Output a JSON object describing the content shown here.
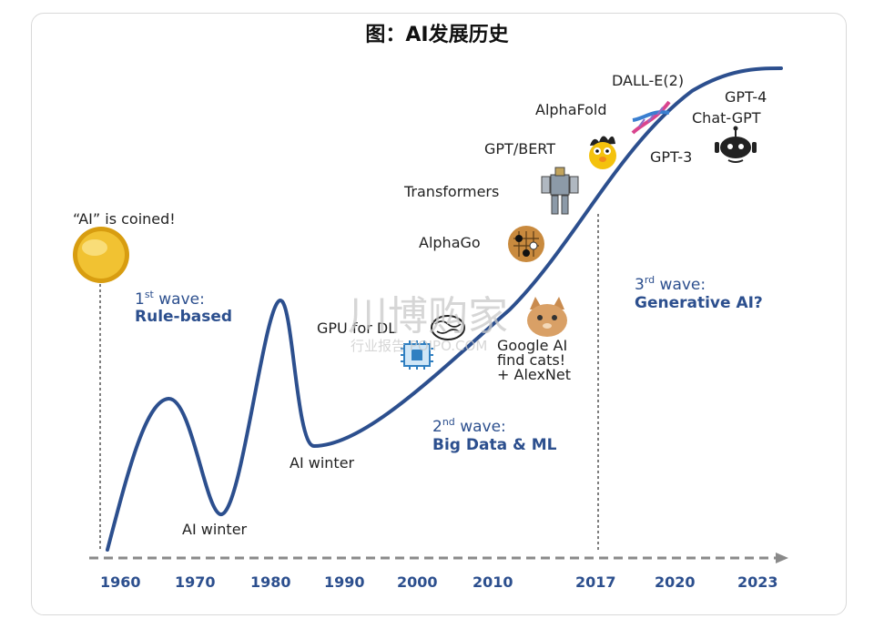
{
  "title": "图：AI发展历史",
  "axis_years": [
    "1960",
    "1970",
    "1980",
    "1990",
    "2000",
    "2010",
    "2017",
    "2020",
    "2023"
  ],
  "labels": {
    "ai_coined": "“AI” is coined!",
    "wave1_sup": "st",
    "wave1_pre": "1",
    "wave1_word": " wave:",
    "wave1_name": "Rule-based",
    "ai_winter_1": "AI winter",
    "ai_winter_2": "AI winter",
    "gpu": "GPU for DL",
    "google_1": "Google AI",
    "google_2": "find cats!",
    "google_3": "+ AlexNet",
    "wave2_pre": "2",
    "wave2_sup": "nd",
    "wave2_word": " wave:",
    "wave2_name": "Big Data & ML",
    "alphago": "AlphaGo",
    "transformers": "Transformers",
    "gpt_bert": "GPT/BERT",
    "alphafold": "AlphaFold",
    "dalle": "DALL-E(2)",
    "gpt4": "GPT-4",
    "chatgpt": "Chat-GPT",
    "gpt3": "GPT-3",
    "wave3_pre": "3",
    "wave3_sup": "rd",
    "wave3_word": " wave:",
    "wave3_name": "Generative AI?"
  },
  "watermark": {
    "main": "川博购家",
    "sub": "行业报告 POIPO.COM"
  },
  "colors": {
    "curve": "#2c4f8e",
    "text_blue": "#2c4f8e",
    "axis": "#8a8a8a",
    "coin": "#e8b923"
  }
}
